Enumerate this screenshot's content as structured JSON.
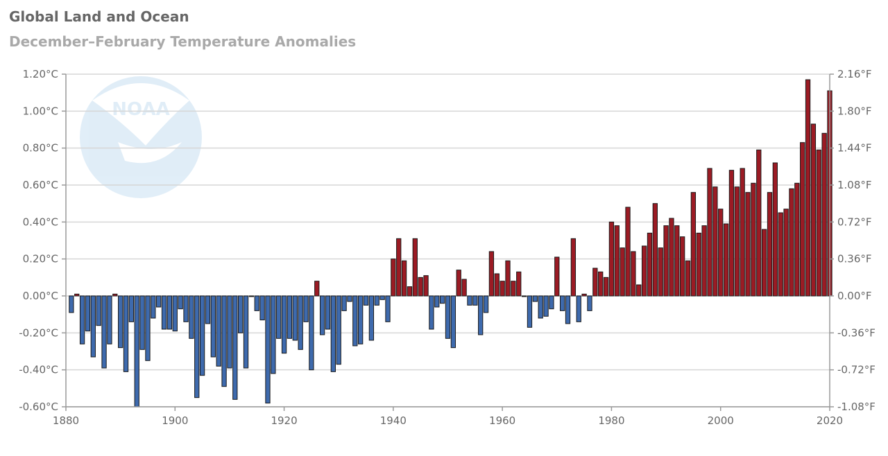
{
  "chart_data": {
    "type": "bar",
    "title": "Global Land and Ocean",
    "subtitle": "December–February Temperature Anomalies",
    "x_ticks": [
      "1880",
      "1900",
      "1920",
      "1940",
      "1960",
      "1980",
      "2000",
      "2020"
    ],
    "x_tick_values": [
      1880,
      1900,
      1920,
      1940,
      1960,
      1980,
      2000,
      2020
    ],
    "xlim": [
      1880,
      2020
    ],
    "ylim": [
      -0.6,
      1.2
    ],
    "y_ticks_left": [
      "1.20°C",
      "1.00°C",
      "0.80°C",
      "0.60°C",
      "0.40°C",
      "0.20°C",
      "0.00°C",
      "-0.20°C",
      "-0.40°C",
      "-0.60°C"
    ],
    "y_ticks_right": [
      "2.16°F",
      "1.80°F",
      "1.44°F",
      "1.08°F",
      "0.72°F",
      "0.36°F",
      "0.00°F",
      "-0.36°F",
      "-0.72°F",
      "-1.08°F"
    ],
    "y_tick_values": [
      1.2,
      1.0,
      0.8,
      0.6,
      0.4,
      0.2,
      0.0,
      -0.2,
      -0.4,
      -0.6
    ],
    "watermark_text": "NOAA",
    "colors": {
      "positive": "#9b1b24",
      "negative": "#3e6aad",
      "outline": "#1a1a1a"
    },
    "start_year": 1881,
    "values": [
      -0.09,
      0.01,
      -0.26,
      -0.19,
      -0.33,
      -0.16,
      -0.39,
      -0.26,
      0.01,
      -0.28,
      -0.41,
      -0.14,
      -0.6,
      -0.29,
      -0.35,
      -0.12,
      -0.06,
      -0.18,
      -0.18,
      -0.19,
      -0.07,
      -0.14,
      -0.23,
      -0.55,
      -0.43,
      -0.15,
      -0.33,
      -0.38,
      -0.49,
      -0.39,
      -0.56,
      -0.2,
      -0.39,
      0.0,
      -0.08,
      -0.13,
      -0.58,
      -0.42,
      -0.23,
      -0.31,
      -0.23,
      -0.24,
      -0.29,
      -0.14,
      -0.4,
      0.08,
      -0.21,
      -0.18,
      -0.41,
      -0.37,
      -0.08,
      -0.03,
      -0.27,
      -0.26,
      -0.05,
      -0.24,
      -0.05,
      -0.02,
      -0.14,
      0.2,
      0.31,
      0.19,
      0.05,
      0.31,
      0.1,
      0.11,
      -0.18,
      -0.06,
      -0.04,
      -0.23,
      -0.28,
      0.14,
      0.09,
      -0.05,
      -0.05,
      -0.21,
      -0.09,
      0.24,
      0.12,
      0.08,
      0.19,
      0.08,
      0.13,
      0.0,
      -0.17,
      -0.03,
      -0.12,
      -0.11,
      -0.07,
      0.21,
      -0.08,
      -0.15,
      0.31,
      -0.14,
      0.01,
      -0.08,
      0.15,
      0.13,
      0.1,
      0.4,
      0.38,
      0.26,
      0.48,
      0.24,
      0.06,
      0.27,
      0.34,
      0.5,
      0.26,
      0.38,
      0.42,
      0.38,
      0.32,
      0.19,
      0.56,
      0.34,
      0.38,
      0.69,
      0.59,
      0.47,
      0.39,
      0.68,
      0.59,
      0.69,
      0.56,
      0.61,
      0.79,
      0.36,
      0.56,
      0.72,
      0.45,
      0.47,
      0.58,
      0.61,
      0.83,
      1.17,
      0.93,
      0.79,
      0.88,
      1.11
    ]
  }
}
